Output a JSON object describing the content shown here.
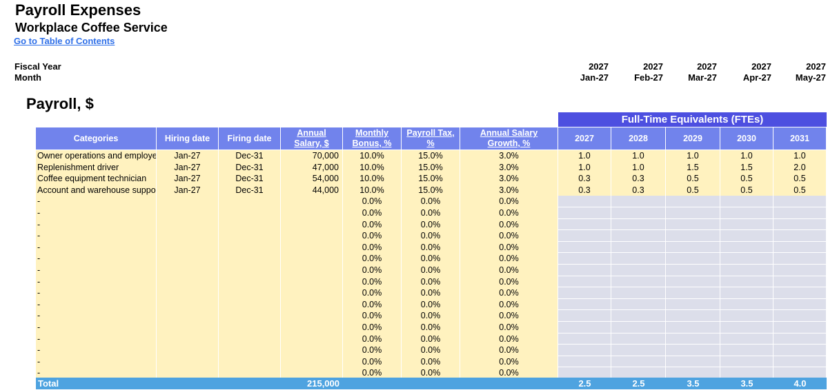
{
  "header": {
    "title": "Payroll Expenses",
    "subtitle": "Workplace Coffee Service",
    "toc_link": "Go to Table of Contents"
  },
  "meta": {
    "fiscal_year_label": "Fiscal Year",
    "month_label": "Month",
    "fiscal_years": [
      "2027",
      "2027",
      "2027",
      "2027",
      "2027"
    ],
    "months": [
      "Jan-27",
      "Feb-27",
      "Mar-27",
      "Apr-27",
      "May-27"
    ]
  },
  "section_title": "Payroll, $",
  "fte_banner": "Full-Time Equivalents (FTEs)",
  "table": {
    "headers": {
      "categories": "Categories",
      "hiring_date": "Hiring date",
      "firing_date": "Firing date",
      "annual_salary_1": "Annual",
      "annual_salary_2": "Salary, $",
      "monthly_bonus_1": "Monthly",
      "monthly_bonus_2": "Bonus, %",
      "payroll_tax_1": "Payroll Tax,",
      "payroll_tax_2": "%",
      "salary_growth_1": "Annual Salary",
      "salary_growth_2": "Growth, %",
      "fte_years": [
        "2027",
        "2028",
        "2029",
        "2030",
        "2031"
      ]
    },
    "rows": [
      {
        "category": "Owner operations and employe",
        "hiring": "Jan-27",
        "firing": "Dec-31",
        "salary": "70,000",
        "bonus": "10.0%",
        "tax": "15.0%",
        "growth": "3.0%",
        "fte": [
          "1.0",
          "1.0",
          "1.0",
          "1.0",
          "1.0"
        ]
      },
      {
        "category": "Replenishment driver",
        "hiring": "Jan-27",
        "firing": "Dec-31",
        "salary": "47,000",
        "bonus": "10.0%",
        "tax": "15.0%",
        "growth": "3.0%",
        "fte": [
          "1.0",
          "1.0",
          "1.5",
          "1.5",
          "2.0"
        ]
      },
      {
        "category": "Coffee equipment technician",
        "hiring": "Jan-27",
        "firing": "Dec-31",
        "salary": "54,000",
        "bonus": "10.0%",
        "tax": "15.0%",
        "growth": "3.0%",
        "fte": [
          "0.3",
          "0.3",
          "0.5",
          "0.5",
          "0.5"
        ]
      },
      {
        "category": "Account and warehouse suppor",
        "hiring": "Jan-27",
        "firing": "Dec-31",
        "salary": "44,000",
        "bonus": "10.0%",
        "tax": "15.0%",
        "growth": "3.0%",
        "fte": [
          "0.3",
          "0.3",
          "0.5",
          "0.5",
          "0.5"
        ]
      }
    ],
    "empty_row": {
      "category": "-",
      "bonus": "0.0%",
      "tax": "0.0%",
      "growth": "0.0%"
    },
    "empty_row_count": 16,
    "total": {
      "label": "Total",
      "salary": "215,000",
      "fte": [
        "2.5",
        "2.5",
        "3.5",
        "3.5",
        "4.0"
      ]
    }
  },
  "colors": {
    "header_blue": "#7183ec",
    "banner_blue": "#4d4fe0",
    "input_yellow": "#fff2bf",
    "fte_gray": "#dcdeea",
    "total_blue": "#4ea3e0",
    "link_blue": "#2e6fe8"
  }
}
